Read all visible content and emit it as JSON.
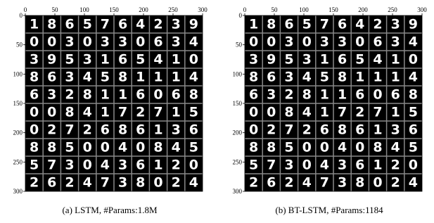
{
  "panels": [
    {
      "caption": "(a) LSTM, #Params:1.8M",
      "xlim": [
        0,
        300
      ],
      "ylim": [
        0,
        300
      ],
      "xticks": [
        0,
        50,
        100,
        150,
        200,
        250,
        300
      ],
      "yticks": [
        0,
        50,
        100,
        150,
        200,
        250,
        300
      ],
      "digits": [
        [
          "1",
          "8",
          "6",
          "5",
          "7",
          "6",
          "4",
          "2",
          "3",
          "9"
        ],
        [
          "0",
          "0",
          "3",
          "0",
          "3",
          "3",
          "0",
          "6",
          "3",
          "4"
        ],
        [
          "3",
          "9",
          "5",
          "3",
          "1",
          "6",
          "5",
          "4",
          "1",
          "0"
        ],
        [
          "8",
          "6",
          "3",
          "4",
          "5",
          "8",
          "1",
          "1",
          "1",
          "4"
        ],
        [
          "6",
          "3",
          "2",
          "8",
          "1",
          "1",
          "6",
          "0",
          "6",
          "8"
        ],
        [
          "0",
          "0",
          "8",
          "4",
          "1",
          "7",
          "2",
          "7",
          "1",
          "5"
        ],
        [
          "0",
          "2",
          "7",
          "2",
          "6",
          "8",
          "6",
          "1",
          "3",
          "6"
        ],
        [
          "8",
          "8",
          "5",
          "0",
          "0",
          "4",
          "0",
          "8",
          "4",
          "5"
        ],
        [
          "5",
          "7",
          "3",
          "0",
          "4",
          "3",
          "6",
          "1",
          "2",
          "0"
        ],
        [
          "2",
          "6",
          "2",
          "4",
          "7",
          "3",
          "8",
          "0",
          "2",
          "4"
        ]
      ]
    },
    {
      "caption": "(b) BT-LSTM, #Params:1184",
      "xlim": [
        0,
        300
      ],
      "ylim": [
        0,
        300
      ],
      "xticks": [
        0,
        50,
        100,
        150,
        200,
        250,
        300
      ],
      "yticks": [
        0,
        50,
        100,
        150,
        200,
        250,
        300
      ],
      "digits": [
        [
          "1",
          "8",
          "6",
          "5",
          "7",
          "6",
          "4",
          "2",
          "3",
          "9"
        ],
        [
          "0",
          "0",
          "3",
          "0",
          "3",
          "3",
          "0",
          "6",
          "3",
          "4"
        ],
        [
          "3",
          "9",
          "5",
          "3",
          "1",
          "6",
          "5",
          "4",
          "1",
          "0"
        ],
        [
          "8",
          "6",
          "3",
          "4",
          "5",
          "8",
          "1",
          "1",
          "1",
          "4"
        ],
        [
          "6",
          "3",
          "2",
          "8",
          "1",
          "1",
          "6",
          "0",
          "6",
          "8"
        ],
        [
          "0",
          "0",
          "8",
          "4",
          "1",
          "7",
          "2",
          "7",
          "1",
          "5"
        ],
        [
          "0",
          "2",
          "7",
          "2",
          "6",
          "8",
          "6",
          "1",
          "3",
          "6"
        ],
        [
          "8",
          "8",
          "5",
          "0",
          "0",
          "4",
          "0",
          "8",
          "4",
          "5"
        ],
        [
          "5",
          "7",
          "3",
          "0",
          "4",
          "3",
          "6",
          "1",
          "2",
          "0"
        ],
        [
          "2",
          "6",
          "2",
          "4",
          "7",
          "3",
          "8",
          "0",
          "2",
          "4"
        ]
      ]
    }
  ]
}
